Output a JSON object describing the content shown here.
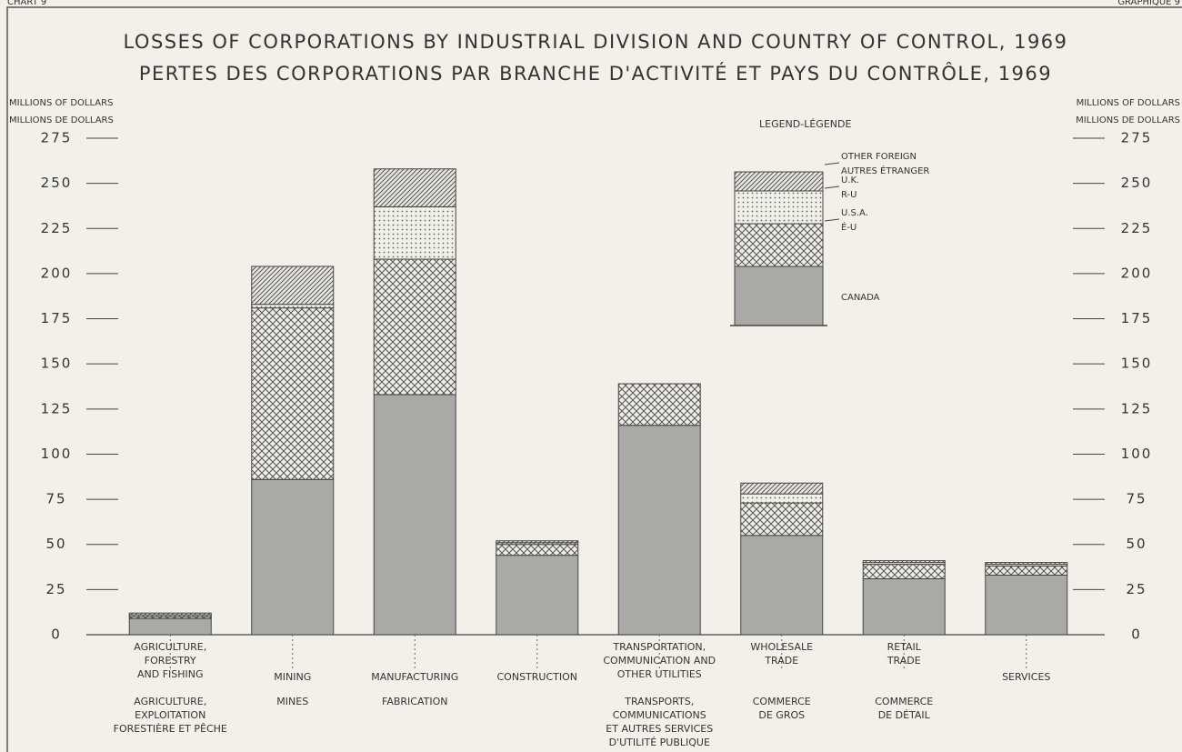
{
  "chart_data": {
    "type": "stacked_bar",
    "chart_label": "CHART 9",
    "chart_label_fr": "GRAPHIQUE 9",
    "title": "LOSSES OF CORPORATIONS BY INDUSTRIAL DIVISION AND COUNTRY OF CONTROL, 1969",
    "title_fr": "PERTES DES CORPORATIONS PAR BRANCHE D'ACTIVITÉ ET PAYS DU CONTRÔLE, 1969",
    "y_label": "MILLIONS OF DOLLARS",
    "y_label_fr": "MILLIONS DE DOLLARS",
    "legend_title": "LEGEND-LÉGENDE",
    "categories": [
      [
        "AGRICULTURE,",
        "FORESTRY",
        "AND FISHING"
      ],
      [
        "MINING"
      ],
      [
        "MANUFACTURING"
      ],
      [
        "CONSTRUCTION"
      ],
      [
        "TRANSPORTATION,",
        "COMMUNICATION AND",
        "OTHER UTILITIES"
      ],
      [
        "WHOLESALE",
        "TRADE"
      ],
      [
        "RETAIL",
        "TRADE"
      ],
      [
        "SERVICES"
      ]
    ],
    "categories_fr": [
      [
        "AGRICULTURE,",
        "EXPLOITATION",
        "FORESTIÈRE ET PÊCHE"
      ],
      [
        "MINES"
      ],
      [
        "FABRICATION"
      ],
      [],
      [
        "TRANSPORTS,",
        "COMMUNICATIONS",
        "ET AUTRES SERVICES",
        "D'UTILITÉ PUBLIQUE"
      ],
      [
        "COMMERCE",
        "DE GROS"
      ],
      [
        "COMMERCE",
        "DE DÉTAIL"
      ],
      []
    ],
    "series": [
      {
        "name": "CANADA",
        "pattern": "solid",
        "color": "#a9a9a6",
        "values": [
          9,
          86,
          133,
          44,
          116,
          55,
          31,
          33
        ]
      },
      {
        "name": "U.S.A.",
        "name_fr": "É-U",
        "pattern": "crosshatch",
        "color": "#555",
        "values": [
          1,
          95,
          75,
          6,
          23,
          18,
          8,
          5
        ]
      },
      {
        "name": "U.K.",
        "name_fr": "R-U",
        "pattern": "dots",
        "color": "#666",
        "values": [
          1,
          2,
          29,
          1,
          0,
          5,
          1,
          1
        ]
      },
      {
        "name": "OTHER FOREIGN",
        "name_fr": "AUTRES ÉTRANGER",
        "pattern": "diagonal",
        "color": "#555",
        "values": [
          1,
          21,
          21,
          1,
          0,
          6,
          1,
          1
        ]
      }
    ],
    "ylim": [
      0,
      275
    ],
    "yticks": [
      0,
      25,
      50,
      75,
      100,
      125,
      150,
      175,
      200,
      225,
      250,
      275
    ],
    "y2lim": [
      0,
      275
    ],
    "y2ticks": [
      0,
      25,
      50,
      75,
      100,
      125,
      150,
      175,
      200,
      225,
      250,
      275
    ]
  }
}
